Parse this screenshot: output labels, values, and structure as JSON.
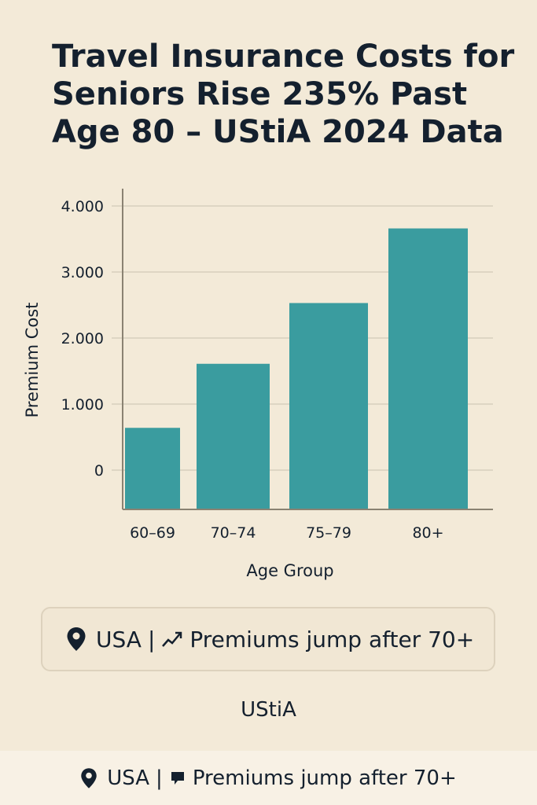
{
  "title_lines": [
    "Travel Insurance Costs for",
    "Seniors Rise 235% Past",
    "Age 80 – UStiA 2024 Data"
  ],
  "chart_data": {
    "type": "bar",
    "categories": [
      "60–69",
      "70–74",
      "75–79",
      "80+"
    ],
    "values": [
      640,
      1610,
      2530,
      3660
    ],
    "xlabel": "Age Group",
    "ylabel": "Premium Cost",
    "yticks": [
      "0",
      "1.000",
      "2.000",
      "3.000",
      "4.000"
    ],
    "ylim": [
      0,
      4000
    ],
    "grid": true,
    "bar_color": "#3a9c9f"
  },
  "callout": {
    "location": "USA",
    "separator": "|",
    "text": "Premiums jump after 70+",
    "location_icon": "map-pin-icon",
    "trend_icon": "trend-up-icon"
  },
  "source": "UStiA",
  "footer": {
    "location": "USA",
    "separator": "|",
    "text": "Premiums jump after 70+",
    "location_icon": "map-pin-icon",
    "flag_icon": "flag-icon"
  }
}
